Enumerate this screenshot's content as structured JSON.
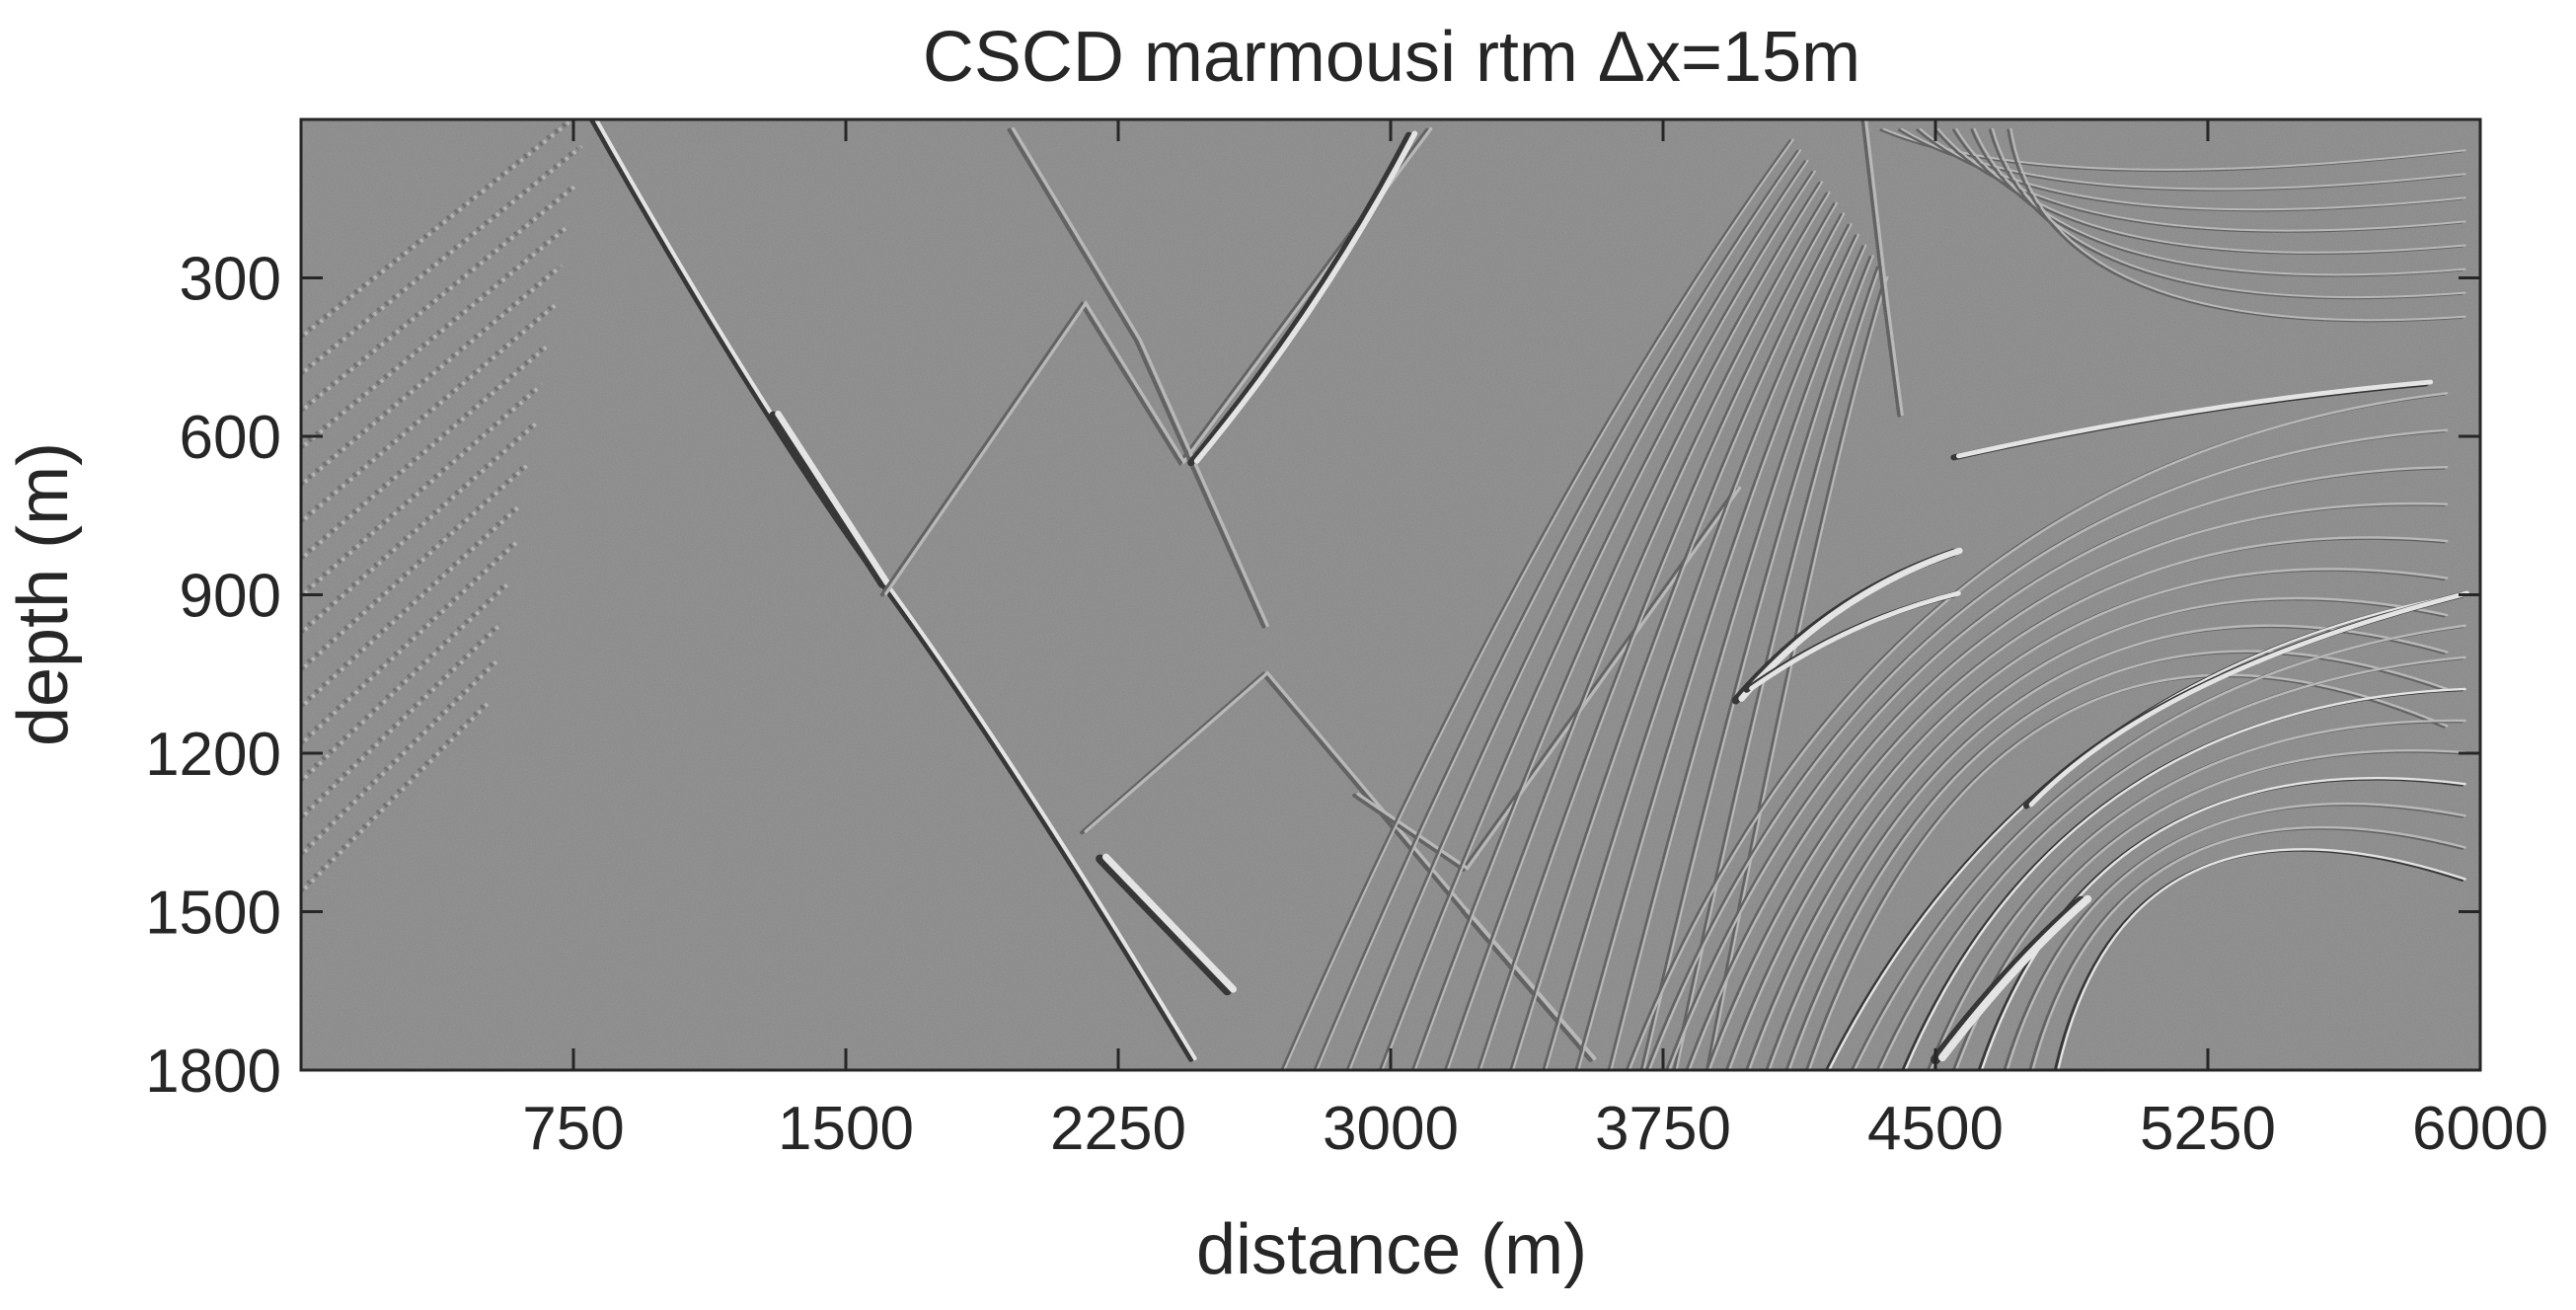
{
  "chart_data": {
    "type": "heatmap",
    "title": "CSCD marmousi rtm Δx=15m",
    "xlabel": "distance (m)",
    "ylabel": "depth (m)",
    "xlim": [
      0,
      6000
    ],
    "ylim": [
      0,
      1800
    ],
    "y_reversed": true,
    "colormap": "gray",
    "xticks": [
      750,
      1500,
      2250,
      3000,
      3750,
      4500,
      5250,
      6000
    ],
    "yticks": [
      300,
      600,
      900,
      1200,
      1500,
      1800
    ],
    "background_color": "#8a8a8a",
    "features": {
      "triangle_reflectors": [
        {
          "x": 1400,
          "y": 1050
        },
        {
          "x": 2100,
          "y": 1350
        },
        {
          "x": 1650,
          "y": 350
        },
        {
          "x": 1950,
          "y": 650
        },
        {
          "x": 2650,
          "y": 1050
        },
        {
          "x": 3200,
          "y": 1420
        }
      ],
      "strong_events": [
        {
          "x": [
            1250,
            1600
          ],
          "y": [
            550,
            880
          ]
        },
        {
          "x": [
            1650,
            2400
          ],
          "y": [
            1050,
            1650
          ]
        },
        {
          "x": [
            3950,
            4550
          ],
          "y": [
            1100,
            820
          ]
        },
        {
          "x": [
            4500,
            4900
          ],
          "y": [
            1780,
            1480
          ]
        },
        {
          "x": [
            4550,
            5850
          ],
          "y": [
            640,
            500
          ]
        }
      ]
    }
  }
}
